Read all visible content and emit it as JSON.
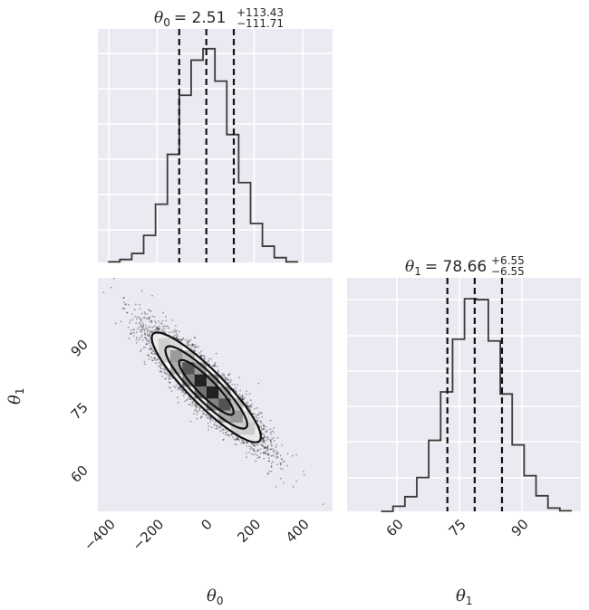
{
  "chart_data": {
    "type": "corner",
    "parameters": [
      {
        "label": "θ0",
        "label_base": "θ",
        "label_sub": "0",
        "median": "2.51",
        "plus": "+113.43",
        "minus": "−111.71",
        "title_eq": "= 2.51",
        "quantiles": [
          -109.2,
          2.51,
          115.94
        ],
        "range": [
          -445,
          523
        ],
        "ticks": [
          -400,
          -200,
          0,
          200,
          400
        ],
        "tick_labels": [
          "−400",
          "−200",
          "0",
          "200",
          "400"
        ],
        "hist": {
          "bin_start": -403,
          "bin_width": 49,
          "heights": [
            2,
            10,
            30,
            90,
            194,
            360,
            557,
            674,
            712,
            604,
            426,
            266,
            130,
            54,
            16,
            2
          ],
          "ymax": 777
        }
      },
      {
        "label": "θ1",
        "label_base": "θ",
        "label_sub": "1",
        "median": "78.66",
        "plus": "+6.55",
        "minus": "−6.55",
        "title_eq": "= 78.66",
        "quantiles": [
          72.11,
          78.66,
          85.21
        ],
        "range": [
          48,
          104.5
        ],
        "ticks": [
          60,
          75,
          90
        ],
        "tick_labels": [
          "60",
          "75",
          "90"
        ],
        "hist": {
          "bin_start": 56.2,
          "bin_width": 2.86,
          "heights": [
            0,
            17,
            49,
            113,
            237,
            399,
            575,
            710,
            707,
            569,
            392,
            222,
            119,
            52,
            11,
            2
          ],
          "ymax": 779
        }
      }
    ],
    "joint": {
      "mean": [
        2.51,
        78.66
      ],
      "std": [
        112.6,
        6.55
      ],
      "correlation": -0.9,
      "contour_sigmas": [
        1,
        1.5,
        2
      ]
    },
    "colors": {
      "background": "#eaeaf2",
      "grid": "#ffffff",
      "line": "#3a3a3a",
      "quantile": "#111111"
    }
  }
}
